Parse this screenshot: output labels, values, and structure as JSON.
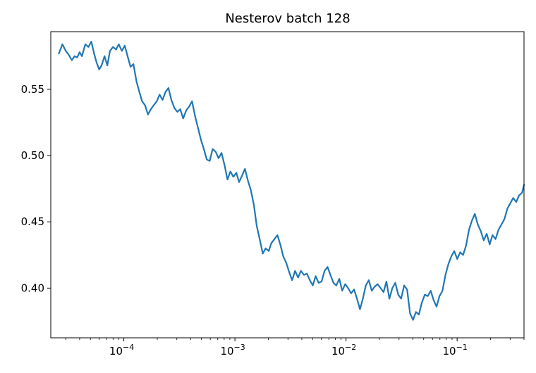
{
  "chart_data": {
    "type": "line",
    "title": "Nesterov batch 128",
    "xlabel": "",
    "ylabel": "",
    "x_scale": "log",
    "xlim": [
      2.2e-05,
      0.4
    ],
    "ylim": [
      0.3625,
      0.5935
    ],
    "grid": false,
    "line_color": "#1f77b4",
    "x_ticks": [
      {
        "value": 0.0001,
        "base": "10",
        "exp": "−4"
      },
      {
        "value": 0.001,
        "base": "10",
        "exp": "−3"
      },
      {
        "value": 0.01,
        "base": "10",
        "exp": "−2"
      },
      {
        "value": 0.1,
        "base": "10",
        "exp": "−1"
      }
    ],
    "y_ticks": [
      {
        "value": 0.4,
        "label": "0.40"
      },
      {
        "value": 0.45,
        "label": "0.45"
      },
      {
        "value": 0.5,
        "label": "0.50"
      },
      {
        "value": 0.55,
        "label": "0.55"
      }
    ],
    "series": [
      {
        "x": [
          2.6e-05,
          2.8e-05,
          3e-05,
          3.2e-05,
          3.4e-05,
          3.6e-05,
          3.8e-05,
          4e-05,
          4.2e-05,
          4.5e-05,
          4.8e-05,
          5.1e-05,
          5.4e-05,
          5.7e-05,
          6e-05,
          6.3e-05,
          6.7e-05,
          7.1e-05,
          7.5e-05,
          8e-05,
          8.5e-05,
          9e-05,
          9.6e-05,
          0.000102,
          0.000108,
          0.000115,
          0.000122,
          0.00013,
          0.000138,
          0.000146,
          0.000155,
          0.000165,
          0.000175,
          0.000186,
          0.000198,
          0.00021,
          0.000223,
          0.000237,
          0.000252,
          0.000268,
          0.000285,
          0.000303,
          0.000322,
          0.000342,
          0.000364,
          0.000387,
          0.000411,
          0.000437,
          0.000465,
          0.000494,
          0.000525,
          0.000558,
          0.000593,
          0.00063,
          0.00067,
          0.000712,
          0.000757,
          0.000805,
          0.000856,
          0.00091,
          0.000967,
          0.00103,
          0.00109,
          0.00116,
          0.00123,
          0.00131,
          0.00139,
          0.00148,
          0.00157,
          0.00167,
          0.00178,
          0.00189,
          0.00201,
          0.00213,
          0.00227,
          0.00241,
          0.00256,
          0.00272,
          0.0029,
          0.00308,
          0.00327,
          0.00348,
          0.0037,
          0.00393,
          0.00418,
          0.00444,
          0.00472,
          0.00502,
          0.00533,
          0.00567,
          0.00603,
          0.00641,
          0.00681,
          0.00724,
          0.0077,
          0.00818,
          0.0087,
          0.00924,
          0.00983,
          0.01045,
          0.0111,
          0.0118,
          0.01255,
          0.01334,
          0.01418,
          0.01507,
          0.01602,
          0.01703,
          0.0181,
          0.01924,
          0.02045,
          0.02174,
          0.02311,
          0.02457,
          0.02612,
          0.02776,
          0.02951,
          0.03137,
          0.03335,
          0.03545,
          0.03768,
          0.04006,
          0.04258,
          0.04526,
          0.04812,
          0.05115,
          0.05437,
          0.0578,
          0.06144,
          0.06531,
          0.06943,
          0.0738,
          0.07845,
          0.0834,
          0.08865,
          0.09424,
          0.1002,
          0.1065,
          0.1132,
          0.1203,
          0.1279,
          0.136,
          0.1445,
          0.1536,
          0.1633,
          0.1736,
          0.1845,
          0.1962,
          0.2085,
          0.2217,
          0.2356,
          0.2505,
          0.2663,
          0.2831,
          0.3009,
          0.3199,
          0.3401,
          0.3615,
          0.3843,
          0.4
        ],
        "y": [
          0.577,
          0.584,
          0.579,
          0.576,
          0.572,
          0.575,
          0.574,
          0.578,
          0.575,
          0.584,
          0.582,
          0.586,
          0.577,
          0.57,
          0.565,
          0.568,
          0.575,
          0.568,
          0.579,
          0.582,
          0.58,
          0.584,
          0.579,
          0.583,
          0.575,
          0.567,
          0.569,
          0.556,
          0.548,
          0.541,
          0.538,
          0.531,
          0.535,
          0.538,
          0.541,
          0.546,
          0.542,
          0.548,
          0.551,
          0.542,
          0.536,
          0.533,
          0.535,
          0.528,
          0.534,
          0.537,
          0.541,
          0.53,
          0.521,
          0.512,
          0.505,
          0.497,
          0.496,
          0.505,
          0.503,
          0.498,
          0.502,
          0.493,
          0.482,
          0.488,
          0.484,
          0.487,
          0.48,
          0.485,
          0.49,
          0.481,
          0.474,
          0.463,
          0.447,
          0.437,
          0.426,
          0.43,
          0.428,
          0.434,
          0.437,
          0.44,
          0.433,
          0.424,
          0.419,
          0.412,
          0.406,
          0.413,
          0.408,
          0.413,
          0.41,
          0.411,
          0.406,
          0.402,
          0.409,
          0.404,
          0.405,
          0.413,
          0.416,
          0.41,
          0.404,
          0.402,
          0.407,
          0.398,
          0.403,
          0.4,
          0.396,
          0.399,
          0.392,
          0.384,
          0.392,
          0.402,
          0.406,
          0.398,
          0.401,
          0.403,
          0.4,
          0.397,
          0.405,
          0.392,
          0.4,
          0.404,
          0.395,
          0.392,
          0.402,
          0.399,
          0.381,
          0.376,
          0.382,
          0.38,
          0.389,
          0.395,
          0.394,
          0.398,
          0.391,
          0.386,
          0.394,
          0.398,
          0.41,
          0.418,
          0.424,
          0.428,
          0.422,
          0.427,
          0.425,
          0.432,
          0.444,
          0.451,
          0.456,
          0.448,
          0.443,
          0.436,
          0.441,
          0.433,
          0.44,
          0.437,
          0.444,
          0.448,
          0.452,
          0.46,
          0.464,
          0.468,
          0.465,
          0.47,
          0.472,
          0.478
        ]
      }
    ]
  }
}
